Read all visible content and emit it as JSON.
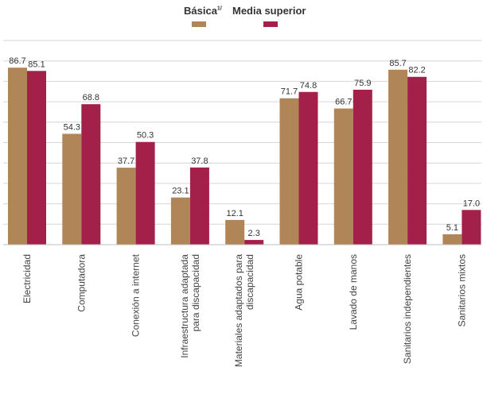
{
  "chart_data": {
    "type": "bar",
    "categories": [
      [
        "Electricidad"
      ],
      [
        "Computadora"
      ],
      [
        "Conexión a internet"
      ],
      [
        "Infraestructura adaptada",
        "para discapacidad"
      ],
      [
        "Materiales adaptados para",
        "discapacidad"
      ],
      [
        "Agua potable"
      ],
      [
        "Lavado de manos"
      ],
      [
        "Sanitarios independientes"
      ],
      [
        "Sanitarios mixtos"
      ]
    ],
    "series": [
      {
        "name": "Básica",
        "name_sup": "1/",
        "color": "#B08557",
        "values": [
          86.7,
          54.3,
          37.7,
          23.1,
          12.1,
          71.7,
          66.7,
          85.7,
          5.1
        ],
        "labels": [
          "86.7",
          "54.3",
          "37.7",
          "23.1",
          "12.1",
          "71.7",
          "66.7",
          "85.7",
          "5.1"
        ]
      },
      {
        "name": "Media superior",
        "color": "#A3204B",
        "values": [
          85.1,
          68.8,
          50.3,
          37.8,
          2.3,
          74.8,
          75.9,
          82.2,
          17.0
        ],
        "labels": [
          "85.1",
          "68.8",
          "50.3",
          "37.8",
          "2.3",
          "74.8",
          "75.9",
          "82.2",
          "17.0"
        ]
      }
    ],
    "ylim": [
      0,
      100
    ],
    "grid": true,
    "legend": "top-center",
    "title": "",
    "xlabel": "",
    "ylabel": ""
  }
}
